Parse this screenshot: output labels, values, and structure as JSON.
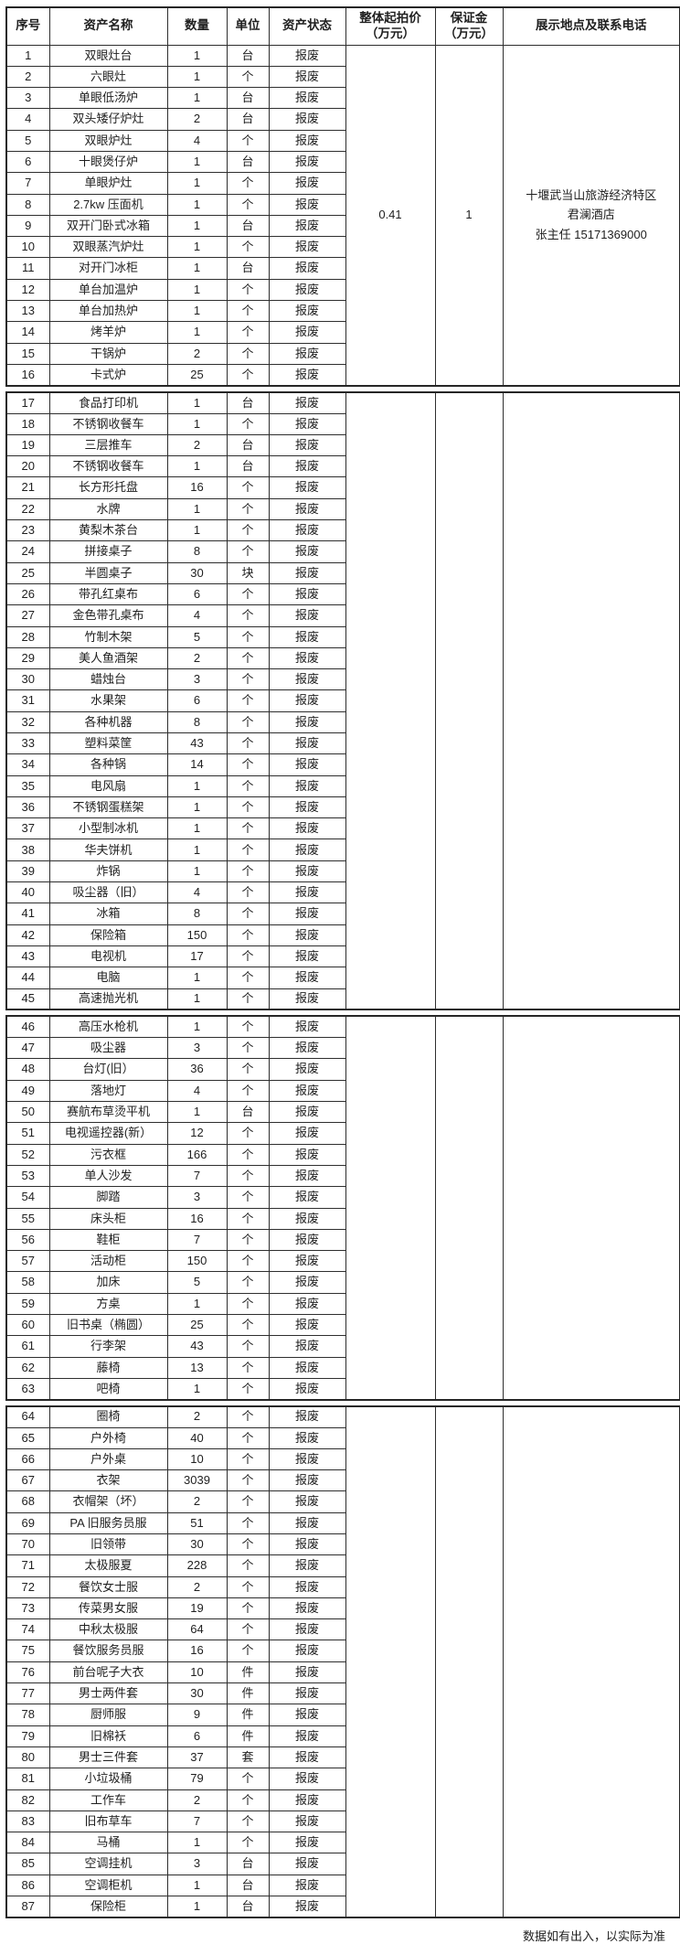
{
  "headers": [
    {
      "key": "serial",
      "lines": [
        "序号"
      ]
    },
    {
      "key": "asset-name",
      "lines": [
        "资产名称"
      ]
    },
    {
      "key": "quantity",
      "lines": [
        "数量"
      ]
    },
    {
      "key": "unit",
      "lines": [
        "单位"
      ]
    },
    {
      "key": "status",
      "lines": [
        "资产状态"
      ]
    },
    {
      "key": "start-price",
      "lines": [
        "整体起拍价",
        "（万元）"
      ]
    },
    {
      "key": "deposit",
      "lines": [
        "保证金",
        "（万元）"
      ]
    },
    {
      "key": "location",
      "lines": [
        "展示地点及联系电话"
      ]
    }
  ],
  "sections": [
    {
      "start_price": "0.41",
      "deposit": "1",
      "location_lines": [
        "十堰武当山旅游经济特区",
        "君澜酒店",
        "张主任 15171369000"
      ],
      "rows": [
        [
          "1",
          "双眼灶台",
          "1",
          "台",
          "报废"
        ],
        [
          "2",
          "六眼灶",
          "1",
          "个",
          "报废"
        ],
        [
          "3",
          "单眼低汤炉",
          "1",
          "台",
          "报废"
        ],
        [
          "4",
          "双头矮仔炉灶",
          "2",
          "台",
          "报废"
        ],
        [
          "5",
          "双眼炉灶",
          "4",
          "个",
          "报废"
        ],
        [
          "6",
          "十眼煲仔炉",
          "1",
          "台",
          "报废"
        ],
        [
          "7",
          "单眼炉灶",
          "1",
          "个",
          "报废"
        ],
        [
          "8",
          "2.7kw 压面机",
          "1",
          "个",
          "报废"
        ],
        [
          "9",
          "双开门卧式冰箱",
          "1",
          "台",
          "报废"
        ],
        [
          "10",
          "双眼蒸汽炉灶",
          "1",
          "个",
          "报废"
        ],
        [
          "11",
          "对开门冰柜",
          "1",
          "台",
          "报废"
        ],
        [
          "12",
          "单台加温炉",
          "1",
          "个",
          "报废"
        ],
        [
          "13",
          "单台加热炉",
          "1",
          "个",
          "报废"
        ],
        [
          "14",
          "烤羊炉",
          "1",
          "个",
          "报废"
        ],
        [
          "15",
          "干锅炉",
          "2",
          "个",
          "报废"
        ],
        [
          "16",
          "卡式炉",
          "25",
          "个",
          "报废"
        ]
      ]
    },
    {
      "start_price": "",
      "deposit": "",
      "location_lines": [],
      "rows": [
        [
          "17",
          "食品打印机",
          "1",
          "台",
          "报废"
        ],
        [
          "18",
          "不锈钢收餐车",
          "1",
          "个",
          "报废"
        ],
        [
          "19",
          "三层推车",
          "2",
          "台",
          "报废"
        ],
        [
          "20",
          "不锈钢收餐车",
          "1",
          "台",
          "报废"
        ],
        [
          "21",
          "长方形托盘",
          "16",
          "个",
          "报废"
        ],
        [
          "22",
          "水牌",
          "1",
          "个",
          "报废"
        ],
        [
          "23",
          "黄梨木茶台",
          "1",
          "个",
          "报废"
        ],
        [
          "24",
          "拼接桌子",
          "8",
          "个",
          "报废"
        ],
        [
          "25",
          "半圆桌子",
          "30",
          "块",
          "报废"
        ],
        [
          "26",
          "带孔红桌布",
          "6",
          "个",
          "报废"
        ],
        [
          "27",
          "金色带孔桌布",
          "4",
          "个",
          "报废"
        ],
        [
          "28",
          "竹制木架",
          "5",
          "个",
          "报废"
        ],
        [
          "29",
          "美人鱼酒架",
          "2",
          "个",
          "报废"
        ],
        [
          "30",
          "蜡烛台",
          "3",
          "个",
          "报废"
        ],
        [
          "31",
          "水果架",
          "6",
          "个",
          "报废"
        ],
        [
          "32",
          "各种机器",
          "8",
          "个",
          "报废"
        ],
        [
          "33",
          "塑料菜筐",
          "43",
          "个",
          "报废"
        ],
        [
          "34",
          "各种锅",
          "14",
          "个",
          "报废"
        ],
        [
          "35",
          "电风扇",
          "1",
          "个",
          "报废"
        ],
        [
          "36",
          "不锈钢蛋糕架",
          "1",
          "个",
          "报废"
        ],
        [
          "37",
          "小型制冰机",
          "1",
          "个",
          "报废"
        ],
        [
          "38",
          "华夫饼机",
          "1",
          "个",
          "报废"
        ],
        [
          "39",
          "炸锅",
          "1",
          "个",
          "报废"
        ],
        [
          "40",
          "吸尘器（旧）",
          "4",
          "个",
          "报废"
        ],
        [
          "41",
          "冰箱",
          "8",
          "个",
          "报废"
        ],
        [
          "42",
          "保险箱",
          "150",
          "个",
          "报废"
        ],
        [
          "43",
          "电视机",
          "17",
          "个",
          "报废"
        ],
        [
          "44",
          "电脑",
          "1",
          "个",
          "报废"
        ],
        [
          "45",
          "高速抛光机",
          "1",
          "个",
          "报废"
        ]
      ]
    },
    {
      "start_price": "",
      "deposit": "",
      "location_lines": [],
      "rows": [
        [
          "46",
          "高压水枪机",
          "1",
          "个",
          "报废"
        ],
        [
          "47",
          "吸尘器",
          "3",
          "个",
          "报废"
        ],
        [
          "48",
          "台灯(旧）",
          "36",
          "个",
          "报废"
        ],
        [
          "49",
          "落地灯",
          "4",
          "个",
          "报废"
        ],
        [
          "50",
          "赛航布草烫平机",
          "1",
          "台",
          "报废"
        ],
        [
          "51",
          "电视遥控器(新）",
          "12",
          "个",
          "报废"
        ],
        [
          "52",
          "污衣框",
          "166",
          "个",
          "报废"
        ],
        [
          "53",
          "单人沙发",
          "7",
          "个",
          "报废"
        ],
        [
          "54",
          "脚踏",
          "3",
          "个",
          "报废"
        ],
        [
          "55",
          "床头柜",
          "16",
          "个",
          "报废"
        ],
        [
          "56",
          "鞋柜",
          "7",
          "个",
          "报废"
        ],
        [
          "57",
          "活动柜",
          "150",
          "个",
          "报废"
        ],
        [
          "58",
          "加床",
          "5",
          "个",
          "报废"
        ],
        [
          "59",
          "方桌",
          "1",
          "个",
          "报废"
        ],
        [
          "60",
          "旧书桌（椭圆）",
          "25",
          "个",
          "报废"
        ],
        [
          "61",
          "行李架",
          "43",
          "个",
          "报废"
        ],
        [
          "62",
          "藤椅",
          "13",
          "个",
          "报废"
        ],
        [
          "63",
          "吧椅",
          "1",
          "个",
          "报废"
        ]
      ]
    },
    {
      "start_price": "",
      "deposit": "",
      "location_lines": [],
      "rows": [
        [
          "64",
          "圈椅",
          "2",
          "个",
          "报废"
        ],
        [
          "65",
          "户外椅",
          "40",
          "个",
          "报废"
        ],
        [
          "66",
          "户外桌",
          "10",
          "个",
          "报废"
        ],
        [
          "67",
          "衣架",
          "3039",
          "个",
          "报废"
        ],
        [
          "68",
          "衣帽架（坏）",
          "2",
          "个",
          "报废"
        ],
        [
          "69",
          "PA 旧服务员服",
          "51",
          "个",
          "报废"
        ],
        [
          "70",
          "旧领带",
          "30",
          "个",
          "报废"
        ],
        [
          "71",
          "太极服夏",
          "228",
          "个",
          "报废"
        ],
        [
          "72",
          "餐饮女士服",
          "2",
          "个",
          "报废"
        ],
        [
          "73",
          "传菜男女服",
          "19",
          "个",
          "报废"
        ],
        [
          "74",
          "中秋太极服",
          "64",
          "个",
          "报废"
        ],
        [
          "75",
          "餐饮服务员服",
          "16",
          "个",
          "报废"
        ],
        [
          "76",
          "前台呢子大衣",
          "10",
          "件",
          "报废"
        ],
        [
          "77",
          "男士两件套",
          "30",
          "件",
          "报废"
        ],
        [
          "78",
          "厨师服",
          "9",
          "件",
          "报废"
        ],
        [
          "79",
          "旧棉袄",
          "6",
          "件",
          "报废"
        ],
        [
          "80",
          "男士三件套",
          "37",
          "套",
          "报废"
        ],
        [
          "81",
          "小垃圾桶",
          "79",
          "个",
          "报废"
        ],
        [
          "82",
          "工作车",
          "2",
          "个",
          "报废"
        ],
        [
          "83",
          "旧布草车",
          "7",
          "个",
          "报废"
        ],
        [
          "84",
          "马桶",
          "1",
          "个",
          "报废"
        ],
        [
          "85",
          "空调挂机",
          "3",
          "台",
          "报废"
        ],
        [
          "86",
          "空调柜机",
          "1",
          "台",
          "报废"
        ],
        [
          "87",
          "保险柜",
          "1",
          "台",
          "报废"
        ]
      ]
    }
  ],
  "footer_note": "数据如有出入，以实际为准"
}
